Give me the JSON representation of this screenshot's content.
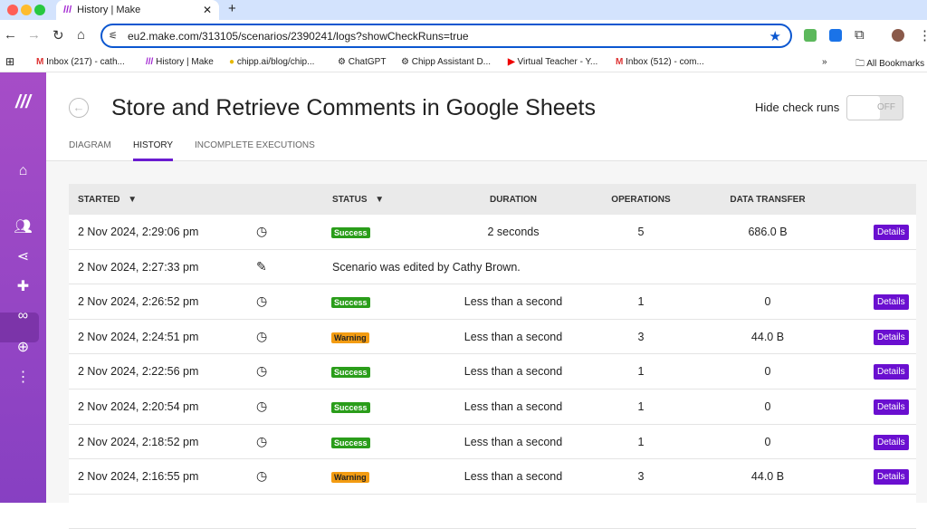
{
  "browser": {
    "tab_title": "History | Make",
    "url": "eu2.make.com/313105/scenarios/2390241/logs?showCheckRuns=true",
    "bookmarks": [
      "Inbox (217) - cath...",
      "History | Make",
      "chipp.ai/blog/chip...",
      "ChatGPT",
      "Chipp Assistant D...",
      "Virtual Teacher - Y...",
      "Inbox (512) - com..."
    ],
    "all_bookmarks": "All Bookmarks"
  },
  "header": {
    "title": "Store and Retrieve Comments in Google Sheets",
    "hide_check_runs": "Hide check runs",
    "toggle_state": "OFF"
  },
  "tabs": [
    "DIAGRAM",
    "HISTORY",
    "INCOMPLETE EXECUTIONS"
  ],
  "table": {
    "columns": [
      "STARTED",
      "STATUS",
      "DURATION",
      "OPERATIONS",
      "DATA TRANSFER"
    ],
    "details_label": "Details",
    "status_colors": {
      "Success": "#2a9d1a",
      "Warning": "#f39c12"
    },
    "rows": [
      {
        "started": "2 Nov 2024, 2:29:06 pm",
        "icon": "clock",
        "status": "Success",
        "duration": "2 seconds",
        "operations": "5",
        "data": "686.0 B"
      },
      {
        "started": "2 Nov 2024, 2:27:33 pm",
        "icon": "edit",
        "note": "Scenario was edited by Cathy Brown."
      },
      {
        "started": "2 Nov 2024, 2:26:52 pm",
        "icon": "clock",
        "status": "Success",
        "duration": "Less than a second",
        "operations": "1",
        "data": "0"
      },
      {
        "started": "2 Nov 2024, 2:24:51 pm",
        "icon": "clock",
        "status": "Warning",
        "duration": "Less than a second",
        "operations": "3",
        "data": "44.0 B"
      },
      {
        "started": "2 Nov 2024, 2:22:56 pm",
        "icon": "clock",
        "status": "Success",
        "duration": "Less than a second",
        "operations": "1",
        "data": "0"
      },
      {
        "started": "2 Nov 2024, 2:20:54 pm",
        "icon": "clock",
        "status": "Success",
        "duration": "Less than a second",
        "operations": "1",
        "data": "0"
      },
      {
        "started": "2 Nov 2024, 2:18:52 pm",
        "icon": "clock",
        "status": "Success",
        "duration": "Less than a second",
        "operations": "1",
        "data": "0"
      },
      {
        "started": "2 Nov 2024, 2:16:55 pm",
        "icon": "clock",
        "status": "Warning",
        "duration": "Less than a second",
        "operations": "3",
        "data": "44.0 B"
      }
    ]
  }
}
